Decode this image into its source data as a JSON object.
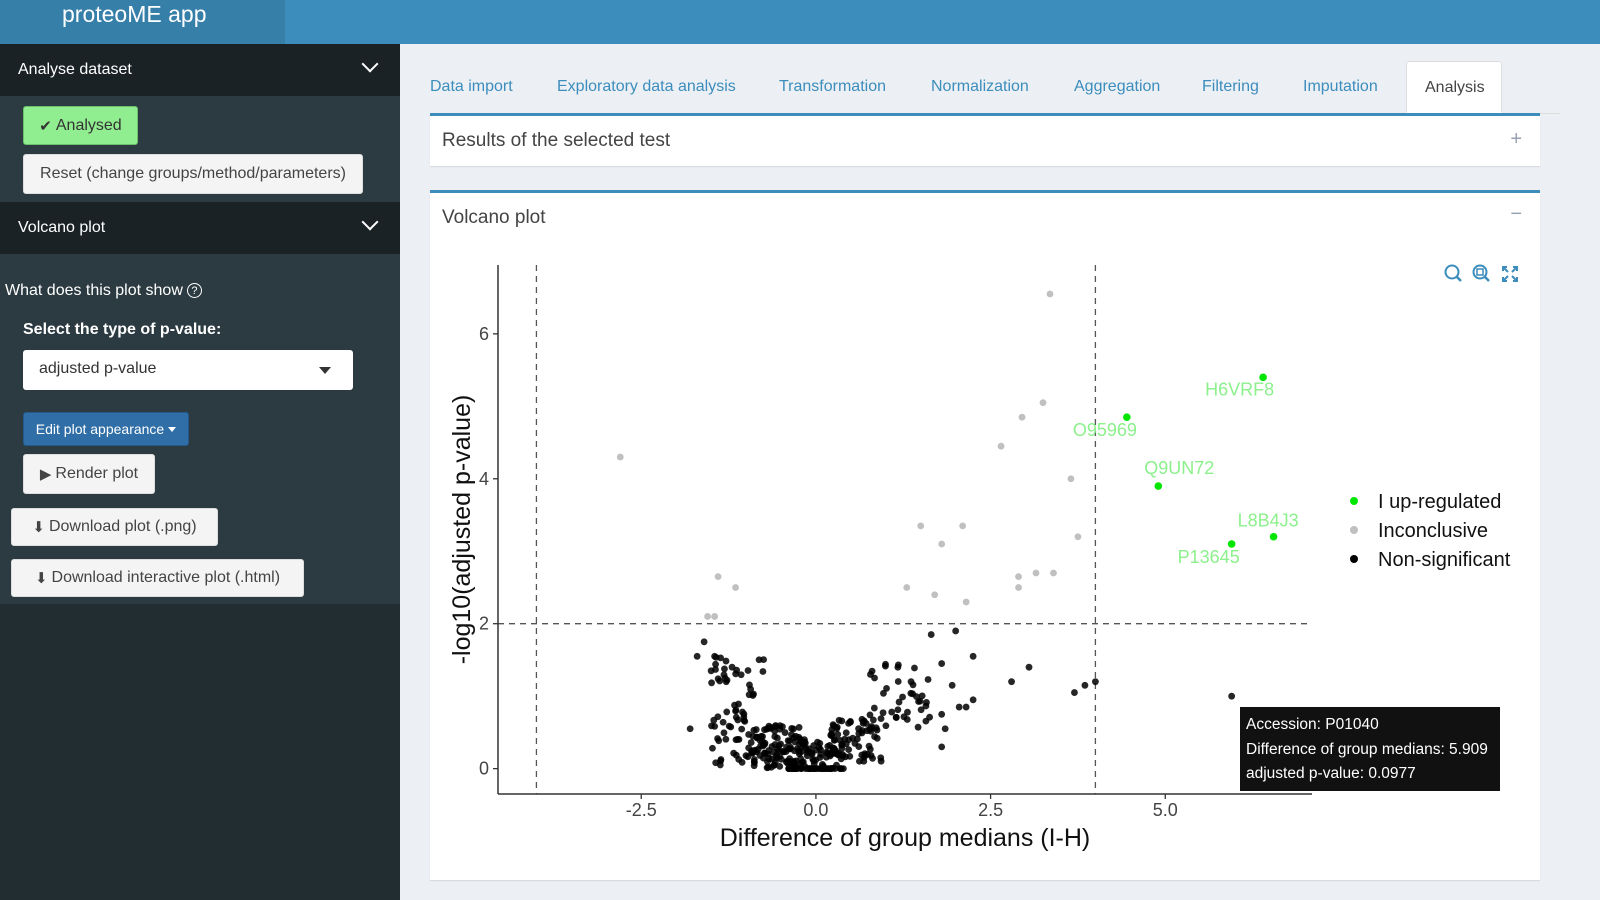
{
  "app_title": "proteoME app",
  "sidebar": {
    "section1": "Analyse dataset",
    "analysed_label": "Analysed",
    "reset_label": "Reset (change groups/method/parameters)",
    "section2": "Volcano plot",
    "help_text": "What does this plot show",
    "select_title": "Select the type of p-value:",
    "select_value": "adjusted p-value",
    "edit_label": "Edit plot appearance",
    "render_label": "Render plot",
    "download_png": "Download plot (.png)",
    "download_html": "Download interactive plot (.html)"
  },
  "tabs": [
    "Data import",
    "Exploratory data analysis",
    "Transformation",
    "Normalization",
    "Aggregation",
    "Filtering",
    "Imputation",
    "Analysis"
  ],
  "active_tab": "Analysis",
  "boxes": {
    "results_title": "Results of the selected test",
    "volcano_title": "Volcano plot"
  },
  "colors": {
    "header": "#3c8dbc",
    "up": "#00e600",
    "inconclusive": "#c0c0c0",
    "nonsig": "#000000"
  },
  "tooltip": {
    "line1": "Accession: P01040",
    "line2": "Difference of group medians: 5.909",
    "line3": "adjusted p-value: 0.0977"
  },
  "chart_data": {
    "type": "scatter",
    "xlabel": "Difference of group medians (I-H)",
    "ylabel": "-log10(adjusted p-value)",
    "xlim": [
      -4.55,
      7.1
    ],
    "ylim": [
      -0.35,
      6.95
    ],
    "x_ticks": [
      -2.5,
      0.0,
      2.5,
      5.0
    ],
    "x_tick_labels": [
      "-2.5",
      "0.0",
      "2.5",
      "5.0"
    ],
    "y_ticks": [
      0,
      2,
      4,
      6
    ],
    "y_tick_labels": [
      "0",
      "2",
      "4",
      "6"
    ],
    "thresholds": {
      "x": [
        -4,
        4
      ],
      "y": 2
    },
    "legend": [
      "I up-regulated",
      "Inconclusive",
      "Non-significant"
    ],
    "legend_position": "right",
    "series": [
      {
        "name": "I up-regulated",
        "points": [
          [
            6.4,
            5.4
          ],
          [
            4.45,
            4.85
          ],
          [
            4.9,
            3.9
          ],
          [
            6.55,
            3.2
          ],
          [
            5.95,
            3.1
          ]
        ],
        "labels": [
          "H6VRF8",
          "O95969",
          "Q9UN72",
          "L8B4J3",
          "P13645"
        ]
      },
      {
        "name": "Inconclusive",
        "points": [
          [
            3.35,
            6.55
          ],
          [
            3.25,
            5.05
          ],
          [
            2.95,
            4.85
          ],
          [
            2.65,
            4.45
          ],
          [
            3.65,
            4.0
          ],
          [
            3.75,
            3.2
          ],
          [
            -2.8,
            4.3
          ],
          [
            1.5,
            3.35
          ],
          [
            2.1,
            3.35
          ],
          [
            1.8,
            3.1
          ],
          [
            3.15,
            2.7
          ],
          [
            3.4,
            2.7
          ],
          [
            2.9,
            2.65
          ],
          [
            2.9,
            2.5
          ],
          [
            1.3,
            2.5
          ],
          [
            1.7,
            2.4
          ],
          [
            2.15,
            2.3
          ],
          [
            -1.4,
            2.65
          ],
          [
            -1.15,
            2.5
          ],
          [
            -1.45,
            2.1
          ],
          [
            -1.55,
            2.1
          ]
        ]
      },
      {
        "name": "Non-significant",
        "points": [
          [
            5.95,
            1.0
          ],
          [
            3.7,
            1.05
          ],
          [
            3.85,
            1.15
          ],
          [
            4.0,
            1.2
          ],
          [
            2.8,
            1.2
          ],
          [
            3.05,
            1.4
          ],
          [
            2.0,
            1.9
          ],
          [
            1.65,
            1.85
          ],
          [
            1.8,
            1.45
          ],
          [
            2.25,
            1.55
          ],
          [
            1.95,
            1.15
          ],
          [
            2.05,
            0.85
          ],
          [
            2.15,
            0.85
          ],
          [
            2.25,
            0.95
          ],
          [
            1.85,
            0.55
          ],
          [
            1.8,
            0.75
          ],
          [
            1.8,
            0.3
          ],
          [
            -1.6,
            1.75
          ],
          [
            -1.45,
            1.55
          ],
          [
            -1.7,
            1.55
          ],
          [
            -1.2,
            1.4
          ],
          [
            -1.5,
            1.35
          ],
          [
            -1.3,
            1.25
          ],
          [
            -1.8,
            0.55
          ]
        ],
        "cluster_centers": [
          [
            -1.1,
            0.8
          ],
          [
            -0.55,
            0.3
          ],
          [
            0.0,
            0.1
          ],
          [
            0.55,
            0.4
          ],
          [
            1.2,
            1.0
          ]
        ]
      }
    ]
  }
}
